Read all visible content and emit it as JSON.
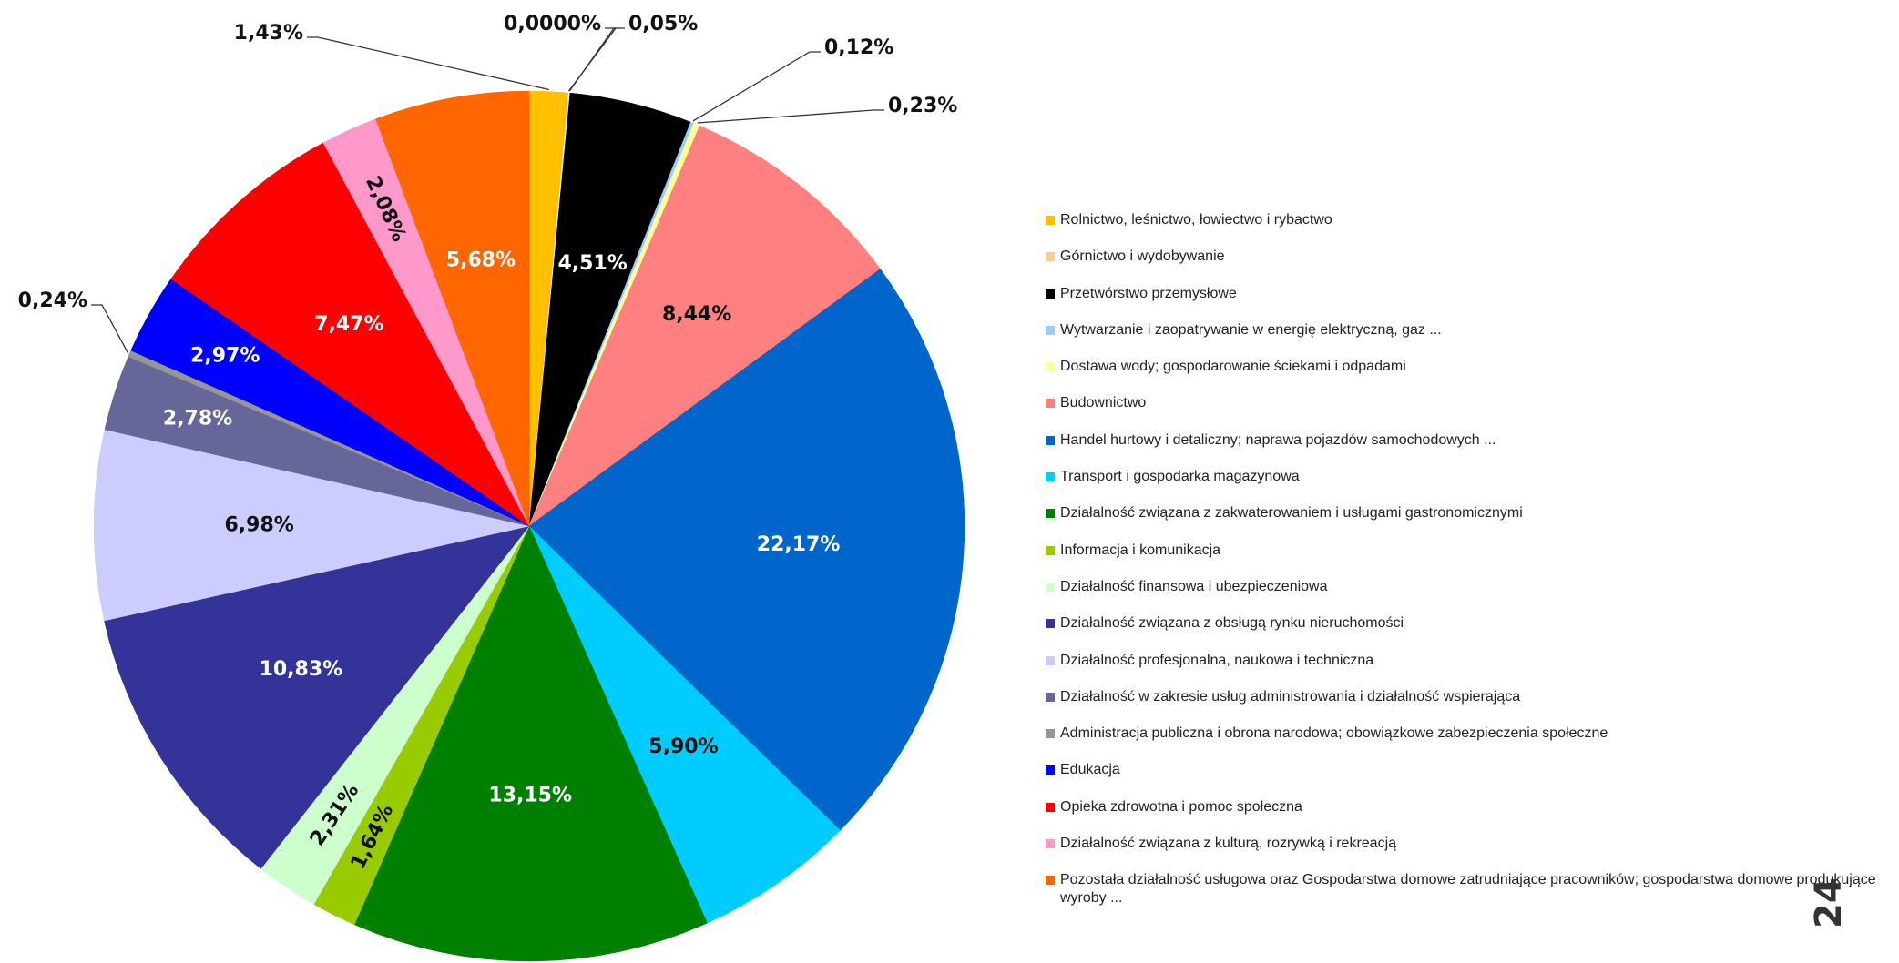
{
  "chart_data": {
    "type": "pie",
    "categories": [
      "Rolnictwo, leśnictwo, łowiectwo i rybactwo",
      "Górnictwo i wydobywanie",
      null,
      "Przetwórstwo przemysłowe",
      "Wytwarzanie i zaopatrywanie w energię elektryczną, gaz ...",
      "Dostawa wody; gospodarowanie ściekami i odpadami",
      "Budownictwo",
      "Handel hurtowy i detaliczny; naprawa pojazdów samochodowych ...",
      "Transport i gospodarka magazynowa",
      "Działalność związana z zakwaterowaniem i usługami gastronomicznymi",
      "Informacja i komunikacja",
      "Działalność finansowa i ubezpieczeniowa",
      "Działalność związana z obsługą rynku nieruchomości",
      "Działalność profesjonalna, naukowa i techniczna",
      "Działalność w zakresie usług administrowania i działalność wspierająca",
      "Administracja publiczna i obrona narodowa; obowiązkowe zabezpieczenia społeczne",
      "Edukacja",
      "Opieka zdrowotna i pomoc społeczna",
      "Działalność związana z kulturą, rozrywką i rekreacją",
      "Pozostała działalność usługowa oraz Gospodarstwa domowe zatrudniające pracowników; gospodarstwa domowe produkujące wyroby ..."
    ],
    "values": [
      1.43,
      0,
      0.05,
      4.51,
      0.12,
      0.23,
      8.44,
      22.17,
      5.9,
      13.15,
      1.64,
      2.31,
      10.83,
      6.98,
      2.78,
      0.24,
      2.97,
      7.47,
      2.08,
      5.68
    ],
    "value_labels": [
      "1,43%",
      "0,0000%",
      "0,05%",
      "4,51%",
      "0,12%",
      "0,23%",
      "8,44%",
      "22,17%",
      "5,90%",
      "13,15%",
      "1,64%",
      "2,31%",
      "10,83%",
      "6,98%",
      "2,78%",
      "0,24%",
      "2,97%",
      "7,47%",
      "2,08%",
      "5,68%"
    ],
    "colors": [
      "#FFC000",
      "#FFCC99",
      "#FFFFFF",
      "#000000",
      "#99CCFF",
      "#FFFF99",
      "#FF8080",
      "#0066CC",
      "#00CCFF",
      "#008000",
      "#99CC00",
      "#CCFFCC",
      "#333399",
      "#CCCCFF",
      "#666699",
      "#969696",
      "#0000FF",
      "#FF0000",
      "#FF99CC",
      "#FF6600"
    ]
  },
  "page_number": "24"
}
